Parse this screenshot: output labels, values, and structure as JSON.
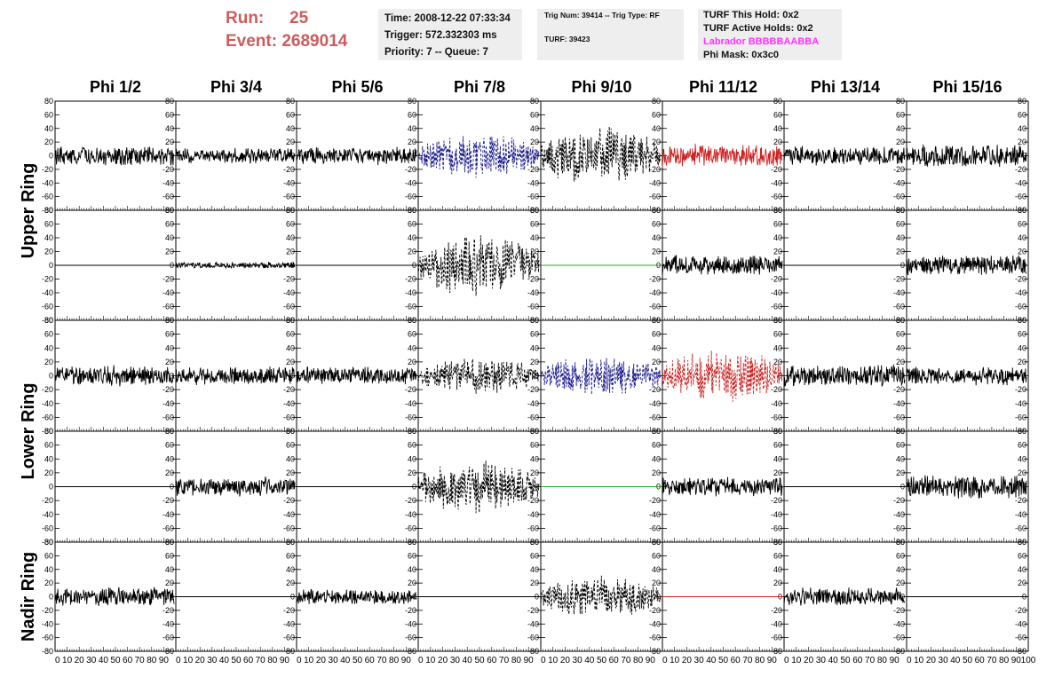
{
  "header": {
    "run_label": "Run:",
    "run_value": "25",
    "event_label": "Event:",
    "event_value": "2689014",
    "time": "Time: 2008-12-22 07:33:34",
    "trigger": "Trigger: 572.332303 ms",
    "priority": "Priority: 7 -- Queue: 7",
    "trig_num": "Trig Num: 39414 -- Trig Type: RF",
    "turf": "TURF: 39423",
    "turf_hold": "TURF This Hold: 0x2",
    "turf_active": "TURF Active Holds: 0x2",
    "labrador": "Labrador BBBBBAABBA",
    "phi_mask": "Phi Mask: 0x3c0"
  },
  "colors": {
    "run_text": "#cd5c5c",
    "labrador_text": "#ff33ff",
    "panel_bg": "#eeeeee",
    "trace_black": "#000000",
    "trace_blue": "#1a1a8c",
    "trace_red": "#cc2222",
    "trace_green": "#22aa22"
  },
  "chart_data": {
    "type": "line",
    "columns": [
      "Phi 1/2",
      "Phi 3/4",
      "Phi 5/6",
      "Phi 7/8",
      "Phi 9/10",
      "Phi 11/12",
      "Phi 13/14",
      "Phi 15/16"
    ],
    "rings": [
      {
        "label": "Upper Ring",
        "rows": 2
      },
      {
        "label": "Lower Ring",
        "rows": 2
      },
      {
        "label": "Nadir Ring",
        "rows": 1
      }
    ],
    "xlim": [
      0,
      100
    ],
    "ylim": [
      -80,
      80
    ],
    "y_ticks": [
      -80,
      -60,
      -40,
      -20,
      0,
      20,
      40,
      60,
      80
    ],
    "y_tick_labels": [
      "-80",
      "-60",
      "-40",
      "-20",
      "0",
      "20",
      "40",
      "60",
      "80"
    ],
    "x_ticks": [
      0,
      10,
      20,
      30,
      40,
      50,
      60,
      70,
      80,
      90,
      100
    ],
    "x_tick_labels": [
      "0",
      "10",
      "20",
      "30",
      "40",
      "50",
      "60",
      "70",
      "80",
      "90",
      "100"
    ],
    "x_tick_labels_compact": [
      "0",
      "10",
      "20",
      "30",
      "40",
      "50",
      "60",
      "70",
      "80",
      "90"
    ],
    "traces": [
      [
        {
          "style": "noise",
          "amp": 15,
          "color": "black"
        },
        {
          "style": "noise",
          "amp": 12,
          "color": "black"
        },
        {
          "style": "noise",
          "amp": 14,
          "color": "black"
        },
        {
          "style": "burst",
          "amp": 28,
          "color": "blue"
        },
        {
          "style": "burst",
          "amp": 38,
          "color": "black"
        },
        {
          "style": "noise",
          "amp": 18,
          "color": "red"
        },
        {
          "style": "noise",
          "amp": 15,
          "color": "black"
        },
        {
          "style": "noise",
          "amp": 18,
          "color": "black"
        }
      ],
      [
        {
          "style": "flat",
          "amp": 0,
          "color": "black"
        },
        {
          "style": "noise",
          "amp": 5,
          "color": "black"
        },
        {
          "style": "flat",
          "amp": 0,
          "color": "black"
        },
        {
          "style": "burst",
          "amp": 38,
          "color": "black"
        },
        {
          "style": "flat",
          "amp": 0,
          "color": "green"
        },
        {
          "style": "noise",
          "amp": 16,
          "color": "black"
        },
        {
          "style": "flat",
          "amp": 0,
          "color": "black"
        },
        {
          "style": "noise",
          "amp": 16,
          "color": "black"
        }
      ],
      [
        {
          "style": "noise",
          "amp": 16,
          "color": "black"
        },
        {
          "style": "noise",
          "amp": 14,
          "color": "black"
        },
        {
          "style": "noise",
          "amp": 14,
          "color": "black"
        },
        {
          "style": "burst",
          "amp": 22,
          "color": "black"
        },
        {
          "style": "burst",
          "amp": 24,
          "color": "blue"
        },
        {
          "style": "burst",
          "amp": 32,
          "color": "red"
        },
        {
          "style": "noise",
          "amp": 18,
          "color": "black"
        },
        {
          "style": "noise",
          "amp": 14,
          "color": "black"
        }
      ],
      [
        {
          "style": "flat",
          "amp": 0,
          "color": "black"
        },
        {
          "style": "noise",
          "amp": 15,
          "color": "black"
        },
        {
          "style": "flat",
          "amp": 0,
          "color": "black"
        },
        {
          "style": "burst",
          "amp": 32,
          "color": "black"
        },
        {
          "style": "flat",
          "amp": 0,
          "color": "green"
        },
        {
          "style": "noise",
          "amp": 15,
          "color": "black"
        },
        {
          "style": "flat",
          "amp": 0,
          "color": "black"
        },
        {
          "style": "noise",
          "amp": 18,
          "color": "black"
        }
      ],
      [
        {
          "style": "noise",
          "amp": 15,
          "color": "black"
        },
        {
          "style": "flat",
          "amp": 0,
          "color": "black"
        },
        {
          "style": "noise",
          "amp": 12,
          "color": "black"
        },
        {
          "style": "flat",
          "amp": 0,
          "color": "black"
        },
        {
          "style": "burst",
          "amp": 26,
          "color": "black"
        },
        {
          "style": "flat",
          "amp": 0,
          "color": "red"
        },
        {
          "style": "noise",
          "amp": 14,
          "color": "black"
        },
        {
          "style": "flat",
          "amp": 0,
          "color": "black"
        }
      ]
    ]
  }
}
